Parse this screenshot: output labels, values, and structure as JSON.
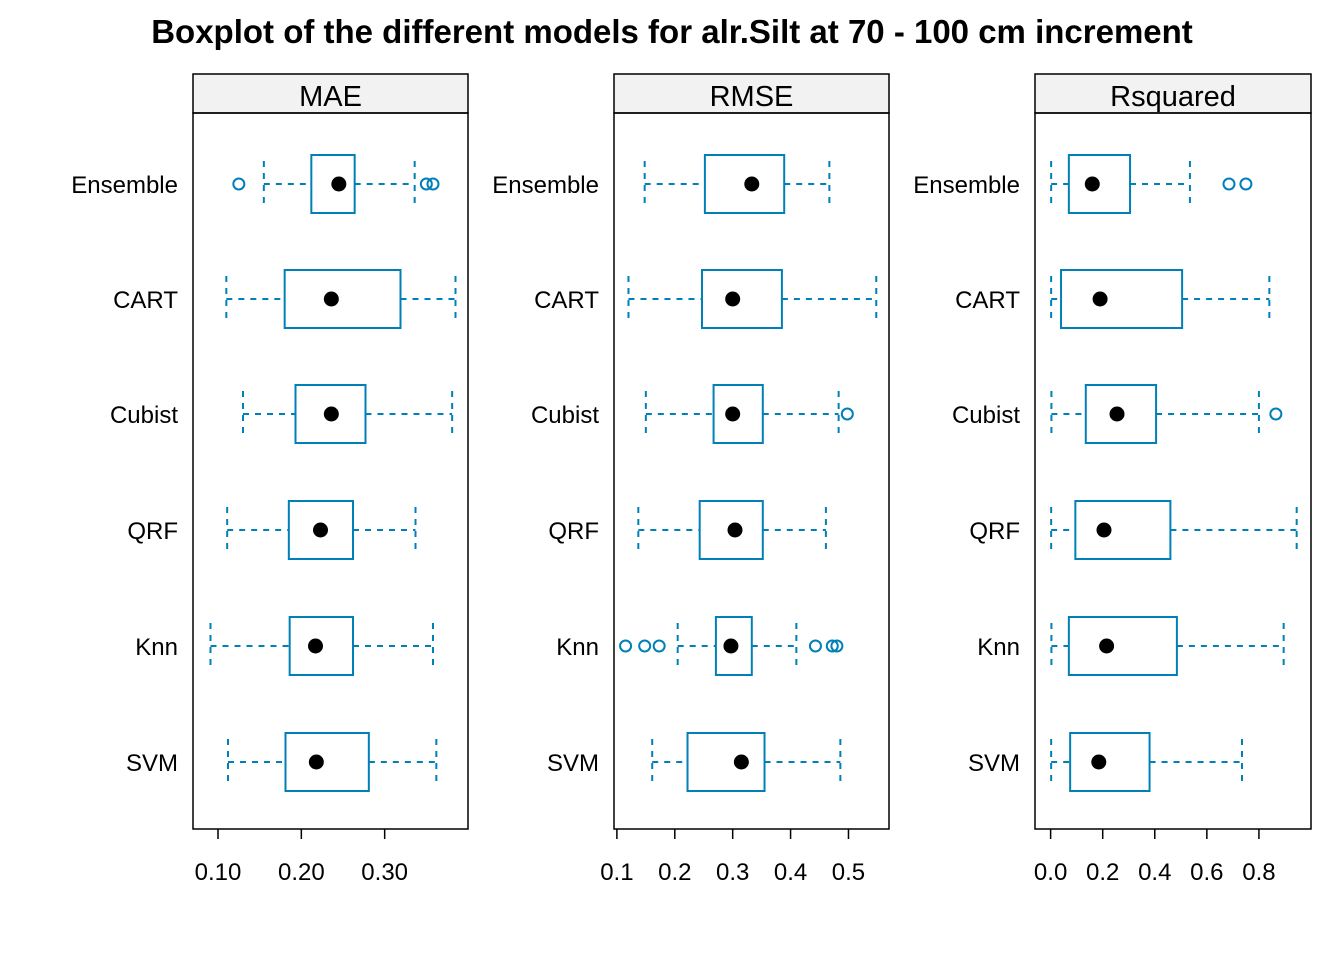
{
  "title": "Boxplot of the different models for alr.Silt at 70 - 100 cm increment",
  "colors": {
    "box": "#0080B7",
    "median": "#000000",
    "strip": "#F2F2F2",
    "frame": "#000000"
  },
  "chart_data": [
    {
      "type": "boxplot",
      "panel": "MAE",
      "xlim": [
        0.07,
        0.4
      ],
      "ticks": [
        0.1,
        0.2,
        0.3
      ],
      "tick_labels": [
        "0.10",
        "0.20",
        "0.30"
      ],
      "categories": [
        "Ensemble",
        "CART",
        "Cubist",
        "QRF",
        "Knn",
        "SVM"
      ],
      "boxes": [
        {
          "name": "Ensemble",
          "whisker_low": 0.155,
          "q1": 0.212,
          "median": 0.245,
          "q3": 0.264,
          "whisker_high": 0.336,
          "outliers": [
            0.125,
            0.35,
            0.358
          ]
        },
        {
          "name": "CART",
          "whisker_low": 0.11,
          "q1": 0.18,
          "median": 0.236,
          "q3": 0.319,
          "whisker_high": 0.385,
          "outliers": []
        },
        {
          "name": "Cubist",
          "whisker_low": 0.13,
          "q1": 0.193,
          "median": 0.236,
          "q3": 0.277,
          "whisker_high": 0.381,
          "outliers": []
        },
        {
          "name": "QRF",
          "whisker_low": 0.111,
          "q1": 0.185,
          "median": 0.223,
          "q3": 0.262,
          "whisker_high": 0.337,
          "outliers": []
        },
        {
          "name": "Knn",
          "whisker_low": 0.091,
          "q1": 0.186,
          "median": 0.217,
          "q3": 0.262,
          "whisker_high": 0.358,
          "outliers": []
        },
        {
          "name": "SVM",
          "whisker_low": 0.112,
          "q1": 0.181,
          "median": 0.218,
          "q3": 0.281,
          "whisker_high": 0.362,
          "outliers": []
        }
      ]
    },
    {
      "type": "boxplot",
      "panel": "RMSE",
      "xlim": [
        0.095,
        0.57
      ],
      "ticks": [
        0.1,
        0.2,
        0.3,
        0.4,
        0.5
      ],
      "tick_labels": [
        "0.1",
        "0.2",
        "0.3",
        "0.4",
        "0.5"
      ],
      "categories": [
        "Ensemble",
        "CART",
        "Cubist",
        "QRF",
        "Knn",
        "SVM"
      ],
      "boxes": [
        {
          "name": "Ensemble",
          "whisker_low": 0.148,
          "q1": 0.252,
          "median": 0.333,
          "q3": 0.389,
          "whisker_high": 0.467,
          "outliers": []
        },
        {
          "name": "CART",
          "whisker_low": 0.12,
          "q1": 0.247,
          "median": 0.3,
          "q3": 0.385,
          "whisker_high": 0.548,
          "outliers": []
        },
        {
          "name": "Cubist",
          "whisker_low": 0.15,
          "q1": 0.267,
          "median": 0.3,
          "q3": 0.352,
          "whisker_high": 0.483,
          "outliers": [
            0.498
          ]
        },
        {
          "name": "QRF",
          "whisker_low": 0.137,
          "q1": 0.243,
          "median": 0.304,
          "q3": 0.352,
          "whisker_high": 0.461,
          "outliers": []
        },
        {
          "name": "Knn",
          "whisker_low": 0.205,
          "q1": 0.271,
          "median": 0.297,
          "q3": 0.333,
          "whisker_high": 0.41,
          "outliers": [
            0.115,
            0.148,
            0.173,
            0.443,
            0.472,
            0.48
          ]
        },
        {
          "name": "SVM",
          "whisker_low": 0.161,
          "q1": 0.222,
          "median": 0.315,
          "q3": 0.355,
          "whisker_high": 0.486,
          "outliers": []
        }
      ]
    },
    {
      "type": "boxplot",
      "panel": "Rsquared",
      "xlim": [
        -0.06,
        1.0
      ],
      "ticks": [
        0.0,
        0.2,
        0.4,
        0.6,
        0.8
      ],
      "tick_labels": [
        "0.0",
        "0.2",
        "0.4",
        "0.6",
        "0.8"
      ],
      "categories": [
        "Ensemble",
        "CART",
        "Cubist",
        "QRF",
        "Knn",
        "SVM"
      ],
      "boxes": [
        {
          "name": "Ensemble",
          "whisker_low": 0.002,
          "q1": 0.07,
          "median": 0.16,
          "q3": 0.305,
          "whisker_high": 0.535,
          "outliers": [
            0.685,
            0.75
          ]
        },
        {
          "name": "CART",
          "whisker_low": 0.002,
          "q1": 0.04,
          "median": 0.19,
          "q3": 0.505,
          "whisker_high": 0.84,
          "outliers": []
        },
        {
          "name": "Cubist",
          "whisker_low": 0.003,
          "q1": 0.135,
          "median": 0.255,
          "q3": 0.405,
          "whisker_high": 0.8,
          "outliers": [
            0.865
          ]
        },
        {
          "name": "QRF",
          "whisker_low": 0.002,
          "q1": 0.095,
          "median": 0.205,
          "q3": 0.46,
          "whisker_high": 0.945,
          "outliers": []
        },
        {
          "name": "Knn",
          "whisker_low": 0.003,
          "q1": 0.07,
          "median": 0.215,
          "q3": 0.485,
          "whisker_high": 0.895,
          "outliers": []
        },
        {
          "name": "SVM",
          "whisker_low": 0.002,
          "q1": 0.075,
          "median": 0.185,
          "q3": 0.38,
          "whisker_high": 0.735,
          "outliers": []
        }
      ]
    }
  ]
}
